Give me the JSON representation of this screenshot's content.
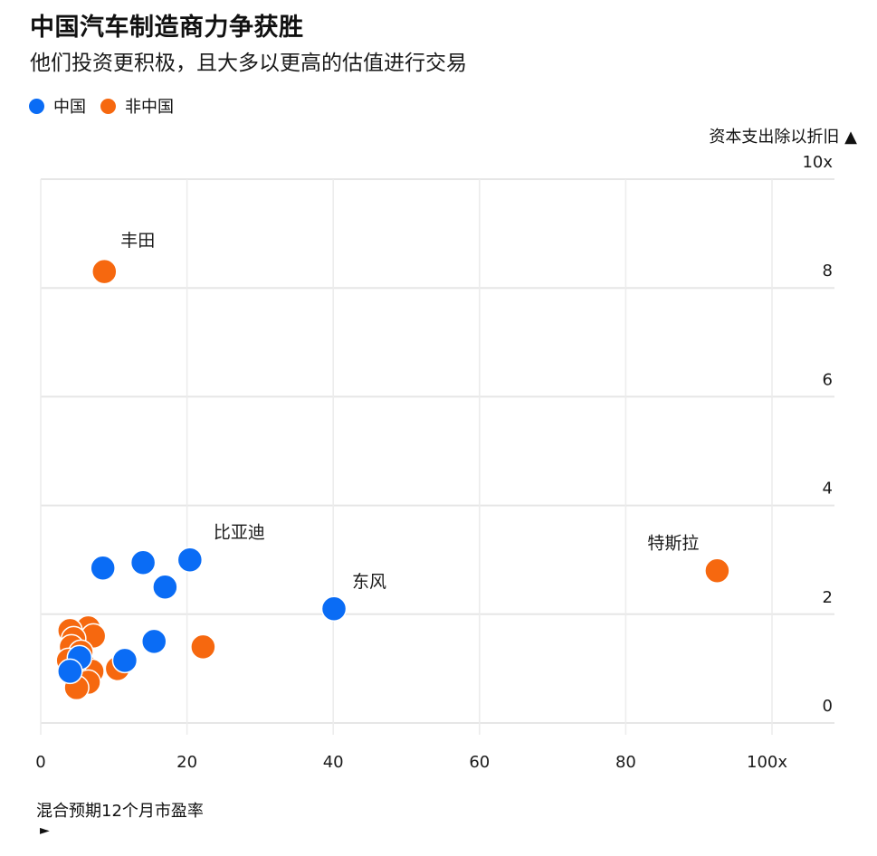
{
  "header": {
    "title": "中国汽车制造商力争获胜",
    "subtitle": "他们投资更积极，且大多以更高的估值进行交易"
  },
  "legend": {
    "items": [
      {
        "label": "中国",
        "color": "#0a6cf5"
      },
      {
        "label": "非中国",
        "color": "#f6680f"
      }
    ]
  },
  "chart_data": {
    "type": "scatter",
    "title": "中国汽车制造商力争获胜",
    "subtitle": "他们投资更积极，且大多以更高的估值进行交易",
    "xlabel": "混合预期12个月市盈率",
    "ylabel": "资本支出除以折旧",
    "xlabel_arrow": "►",
    "ylabel_arrow": "▲",
    "xlim": [
      0,
      108
    ],
    "ylim": [
      -0.5,
      10
    ],
    "x_ticks": [
      0,
      20,
      40,
      60,
      80,
      100
    ],
    "x_tick_labels": [
      "0",
      "20",
      "40",
      "60",
      "80",
      "100x"
    ],
    "y_ticks": [
      0,
      2,
      4,
      6,
      8,
      10
    ],
    "y_tick_labels": [
      "0",
      "2",
      "4",
      "6",
      "8",
      "10x"
    ],
    "grid": true,
    "legend_position": "top-left",
    "series": [
      {
        "name": "非中国",
        "color": "#f6680f",
        "points": [
          {
            "x": 8.7,
            "y": 8.3,
            "label": "丰田"
          },
          {
            "x": 92.5,
            "y": 2.8,
            "label": "特斯拉"
          },
          {
            "x": 22.2,
            "y": 1.4
          },
          {
            "x": 6.5,
            "y": 1.75
          },
          {
            "x": 4.0,
            "y": 1.7
          },
          {
            "x": 7.2,
            "y": 1.6
          },
          {
            "x": 4.5,
            "y": 1.55
          },
          {
            "x": 4.2,
            "y": 1.4
          },
          {
            "x": 5.5,
            "y": 1.3
          },
          {
            "x": 3.8,
            "y": 1.15
          },
          {
            "x": 6.0,
            "y": 1.05
          },
          {
            "x": 7.0,
            "y": 0.95
          },
          {
            "x": 10.5,
            "y": 1.0
          },
          {
            "x": 4.8,
            "y": 0.85
          },
          {
            "x": 6.5,
            "y": 0.75
          },
          {
            "x": 4.9,
            "y": 0.65
          }
        ]
      },
      {
        "name": "中国",
        "color": "#0a6cf5",
        "points": [
          {
            "x": 20.4,
            "y": 3.0,
            "label": "比亚迪"
          },
          {
            "x": 40.1,
            "y": 2.1,
            "label": "东风"
          },
          {
            "x": 14.0,
            "y": 2.95
          },
          {
            "x": 8.5,
            "y": 2.85
          },
          {
            "x": 17.0,
            "y": 2.5
          },
          {
            "x": 15.5,
            "y": 1.5
          },
          {
            "x": 11.5,
            "y": 1.15
          },
          {
            "x": 5.3,
            "y": 1.2
          },
          {
            "x": 4.0,
            "y": 0.95
          }
        ]
      }
    ]
  }
}
